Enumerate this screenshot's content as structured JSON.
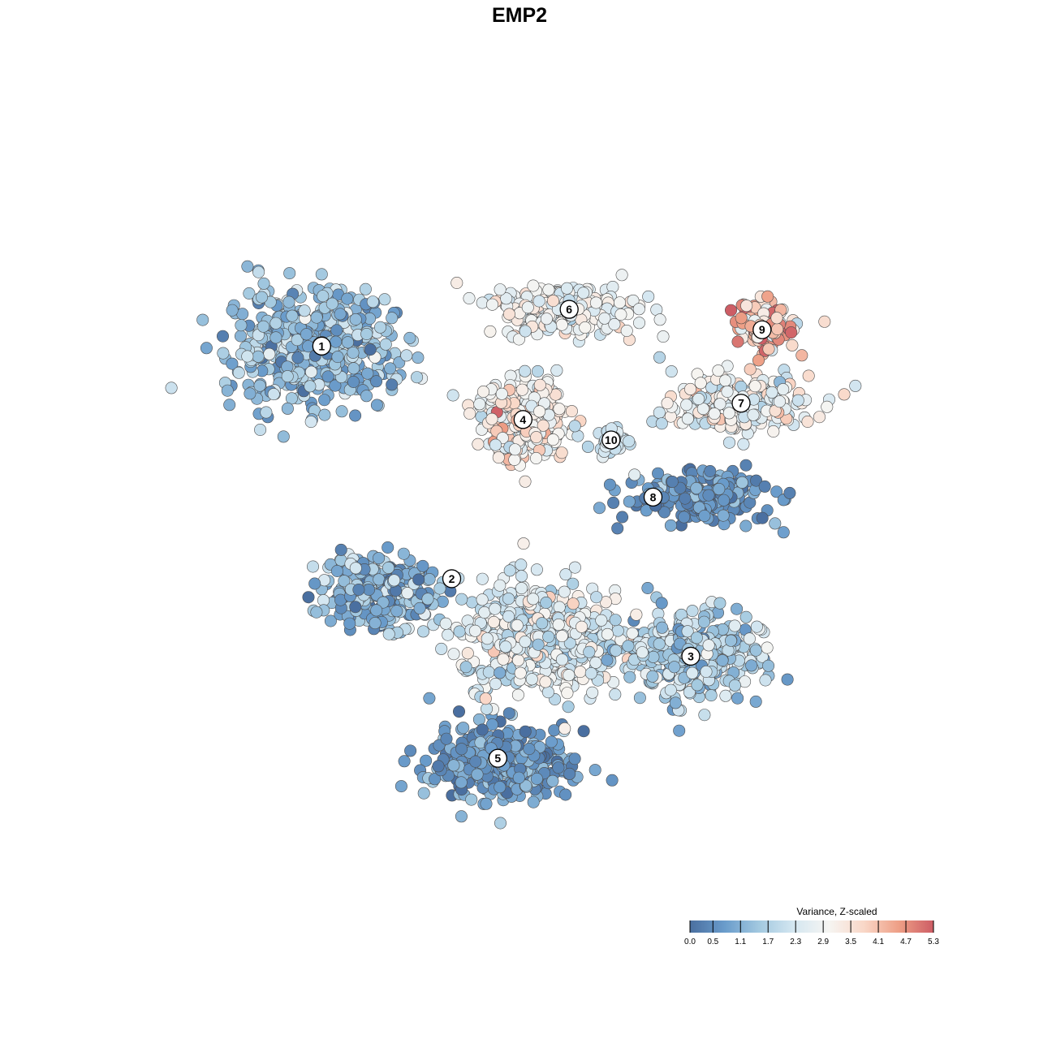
{
  "chart_data": {
    "type": "scatter",
    "title": "EMP2",
    "xlabel": "",
    "ylabel": "",
    "xlim": [
      -45,
      45
    ],
    "ylim": [
      -45,
      45
    ],
    "grid": false,
    "legend": {
      "title": "Variance, Z-scaled",
      "placement": "bottom-right",
      "ticks": [
        "0.0",
        "0.5",
        "1.1",
        "1.7",
        "2.3",
        "2.9",
        "3.5",
        "4.1",
        "4.7",
        "5.3"
      ],
      "range": [
        0.0,
        5.3
      ],
      "colors": [
        "#4a6fa0",
        "#6a9ccb",
        "#a3c9e0",
        "#d5e7f1",
        "#f6f5f2",
        "#f9d7c7",
        "#ee9f86",
        "#cd5d65"
      ]
    },
    "clusters": [
      {
        "label": "1",
        "x": -27.5,
        "y": 21.0,
        "sx": 9.0,
        "sy": 6.2,
        "n": 520,
        "mean": 1.35,
        "sd": 0.55
      },
      {
        "label": "6",
        "x": 3.5,
        "y": 25.5,
        "sx": 7.2,
        "sy": 2.8,
        "n": 260,
        "mean": 2.85,
        "sd": 0.45
      },
      {
        "label": "9",
        "x": 26.5,
        "y": 23.5,
        "sx": 3.8,
        "sy": 2.6,
        "n": 120,
        "mean": 3.9,
        "sd": 0.8
      },
      {
        "label": "4",
        "x": -2.0,
        "y": 12.0,
        "sx": 5.0,
        "sy": 4.5,
        "n": 270,
        "mean": 3.1,
        "sd": 0.6
      },
      {
        "label": "10",
        "x": 8.5,
        "y": 9.5,
        "sx": 1.6,
        "sy": 1.6,
        "n": 40,
        "mean": 2.3,
        "sd": 0.25
      },
      {
        "label": "7",
        "x": 24.0,
        "y": 14.0,
        "sx": 7.5,
        "sy": 3.2,
        "n": 260,
        "mean": 2.75,
        "sd": 0.55
      },
      {
        "label": "8",
        "x": 18.5,
        "y": 2.5,
        "sx": 7.5,
        "sy": 2.6,
        "n": 230,
        "mean": 0.65,
        "sd": 0.45
      },
      {
        "label": "2",
        "x": -19.5,
        "y": -9.0,
        "sx": 6.5,
        "sy": 4.0,
        "n": 260,
        "mean": 1.15,
        "sd": 0.6
      },
      {
        "label": "3",
        "x": 18.0,
        "y": -17.0,
        "sx": 7.5,
        "sy": 5.0,
        "n": 330,
        "mean": 1.75,
        "sd": 0.6
      },
      {
        "label": "5",
        "x": -5.0,
        "y": -30.0,
        "sx": 7.5,
        "sy": 4.0,
        "n": 380,
        "mean": 0.75,
        "sd": 0.45
      },
      {
        "label": "",
        "x": 0.0,
        "y": -15.0,
        "sx": 8.5,
        "sy": 6.5,
        "n": 500,
        "mean": 2.45,
        "sd": 0.6
      }
    ],
    "label_positions": [
      {
        "label": "1",
        "x": -26.0,
        "y": 21.0
      },
      {
        "label": "6",
        "x": 3.5,
        "y": 25.5
      },
      {
        "label": "9",
        "x": 26.5,
        "y": 23.0
      },
      {
        "label": "4",
        "x": -2.0,
        "y": 12.0
      },
      {
        "label": "10",
        "x": 8.5,
        "y": 9.5
      },
      {
        "label": "7",
        "x": 24.0,
        "y": 14.0
      },
      {
        "label": "8",
        "x": 13.5,
        "y": 2.5
      },
      {
        "label": "2",
        "x": -10.5,
        "y": -7.5
      },
      {
        "label": "3",
        "x": 18.0,
        "y": -17.0
      },
      {
        "label": "5",
        "x": -5.0,
        "y": -29.5
      }
    ]
  }
}
